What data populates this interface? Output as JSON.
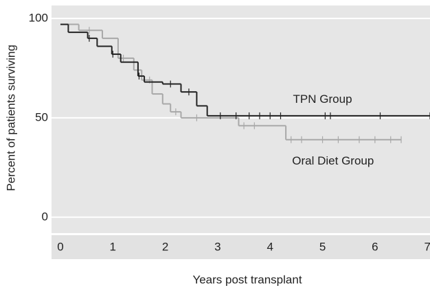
{
  "chart_data": {
    "type": "step",
    "ylabel": "Percent of patients surviving",
    "xlabel": "Years post transplant",
    "xlim": [
      -0.17,
      7.05
    ],
    "ylim": [
      -8,
      106.5
    ],
    "xticks": [
      0,
      1,
      2,
      3,
      4,
      5,
      6,
      7
    ],
    "yticks": [
      0,
      50,
      100
    ],
    "grid": true,
    "annotations": [
      {
        "text": "TPN Group",
        "x": 5.0,
        "y": 59
      },
      {
        "text": "Oral Diet Group",
        "x": 5.2,
        "y": 28
      }
    ],
    "series": [
      {
        "name": "Oral Diet Group",
        "color": "#a8a8a8",
        "x": [
          0,
          0.35,
          0.8,
          1.1,
          1.4,
          1.55,
          1.75,
          1.95,
          2.1,
          2.3,
          3.4,
          4.3
        ],
        "values": [
          97,
          94,
          90,
          80,
          74,
          69,
          62,
          57,
          53,
          50,
          46,
          39
        ],
        "censored": [
          0.55,
          1.2,
          1.7,
          2.2,
          2.6,
          3.5,
          3.7,
          4.4,
          4.6,
          5.0,
          5.3,
          5.7,
          6.0,
          6.3,
          6.5
        ]
      },
      {
        "name": "TPN Group",
        "color": "#222222",
        "x": [
          0,
          0.15,
          0.52,
          0.7,
          0.98,
          1.15,
          1.48,
          1.6,
          1.95,
          2.3,
          2.6,
          2.8
        ],
        "values": [
          97,
          93,
          90,
          86,
          82,
          78,
          71,
          68,
          67,
          63,
          56,
          51
        ],
        "censored": [
          0.55,
          1.0,
          1.5,
          2.1,
          2.45,
          3.05,
          3.35,
          3.6,
          3.8,
          4.0,
          4.2,
          5.05,
          5.15,
          6.1,
          7.05
        ]
      }
    ]
  }
}
